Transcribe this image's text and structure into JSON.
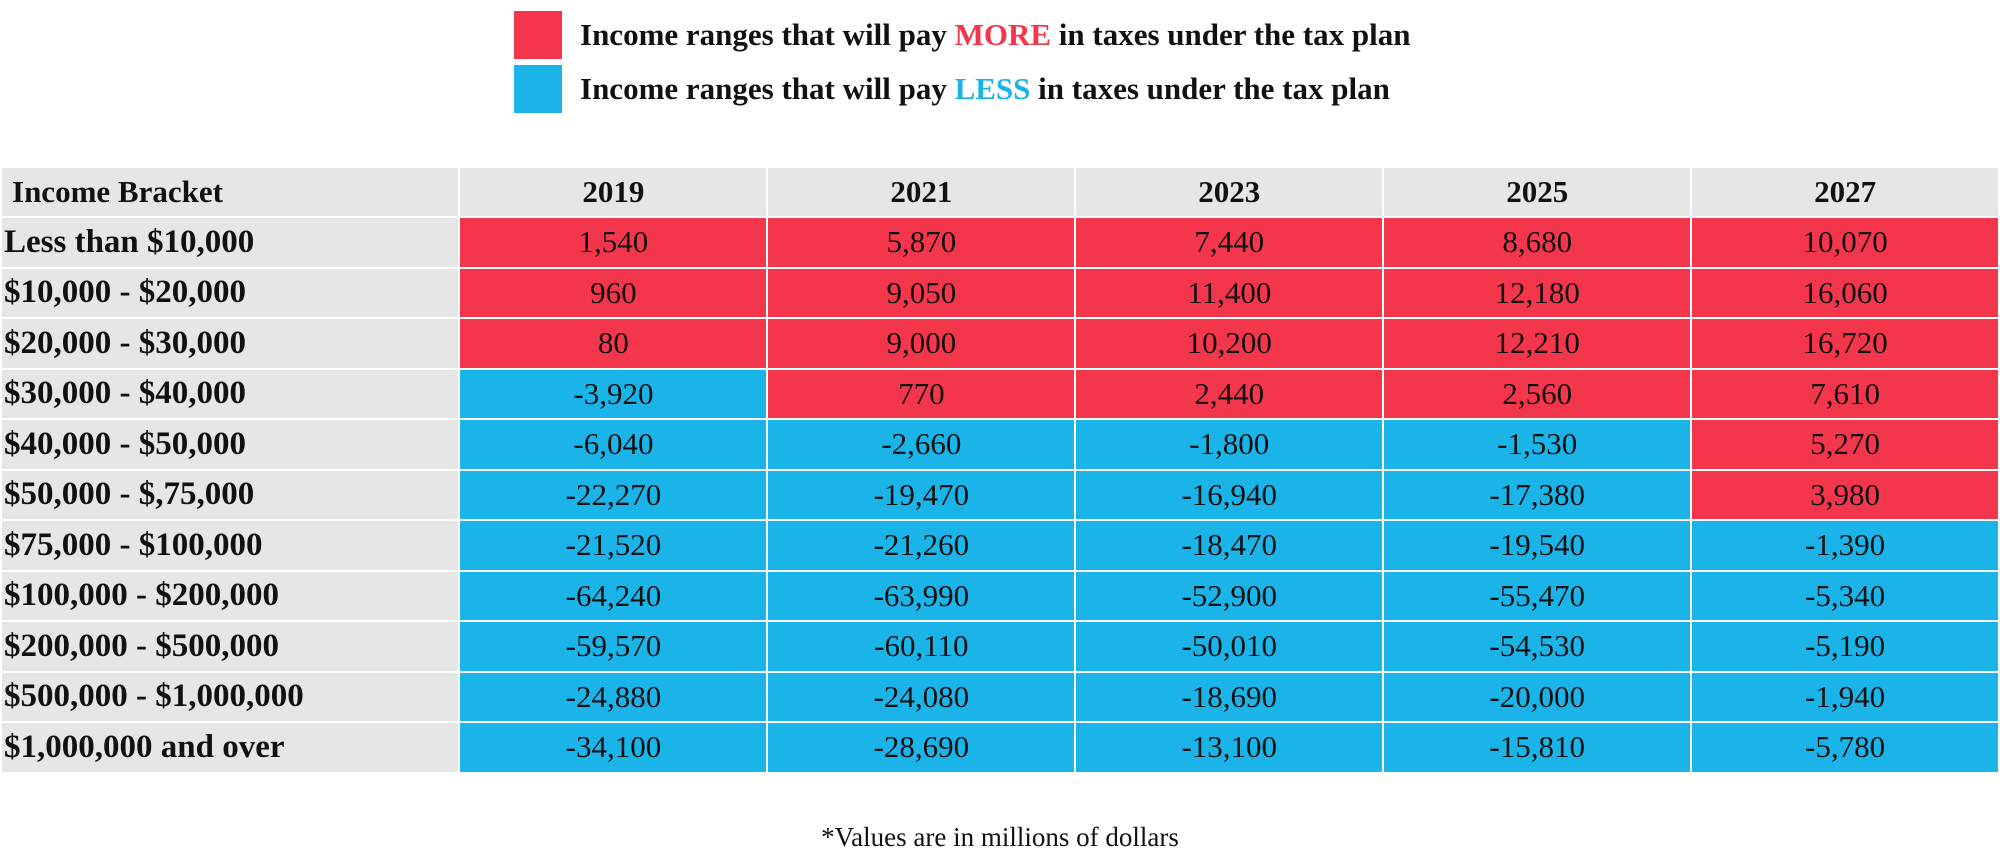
{
  "legend": [
    {
      "color": "#f4364c",
      "before": "Income ranges that will pay",
      "emphasis": "MORE",
      "after": "in taxes under the tax plan"
    },
    {
      "color": "#1ab4e8",
      "before": "Income ranges that will pay",
      "emphasis": "LESS",
      "after": "in taxes under the tax plan"
    }
  ],
  "table": {
    "header": [
      "Income Bracket",
      "2019",
      "2021",
      "2023",
      "2025",
      "2027"
    ],
    "header_color": "#e6e6e6",
    "rows": [
      [
        "Less than $10,000",
        "1,540",
        "5,870",
        "7,440",
        "8,680",
        "10,070"
      ],
      [
        "$10,000 - $20,000",
        "960",
        "9,050",
        "11,400",
        "12,180",
        "16,060"
      ],
      [
        "$20,000 - $30,000",
        "80",
        "9,000",
        "10,200",
        "12,210",
        "16,720"
      ],
      [
        "$30,000 - $40,000",
        "-3,920",
        "770",
        "2,440",
        "2,560",
        "7,610"
      ],
      [
        "$40,000 - $50,000",
        "-6,040",
        "-2,660",
        "-1,800",
        "-1,530",
        "5,270"
      ],
      [
        "$50,000 - $,75,000",
        "-22,270",
        "-19,470",
        "-16,940",
        "-17,380",
        "3,980"
      ],
      [
        "$75,000 - $100,000",
        "-21,520",
        "-21,260",
        "-18,470",
        "-19,540",
        "-1,390"
      ],
      [
        "$100,000 - $200,000",
        "-64,240",
        "-63,990",
        "-52,900",
        "-55,470",
        "-5,340"
      ],
      [
        "$200,000 - $500,000",
        "-59,570",
        "-60,110",
        "-50,010",
        "-54,530",
        "-5,190"
      ],
      [
        "$500,000 - $1,000,000",
        "-24,880",
        "-24,080",
        "-18,690",
        "-20,000",
        "-1,940"
      ],
      [
        "$1,000,000 and over",
        "-34,100",
        "-28,690",
        "-13,100",
        "-15,810",
        "-5,780"
      ]
    ]
  },
  "footnote": "*Values are in millions of dollars"
}
